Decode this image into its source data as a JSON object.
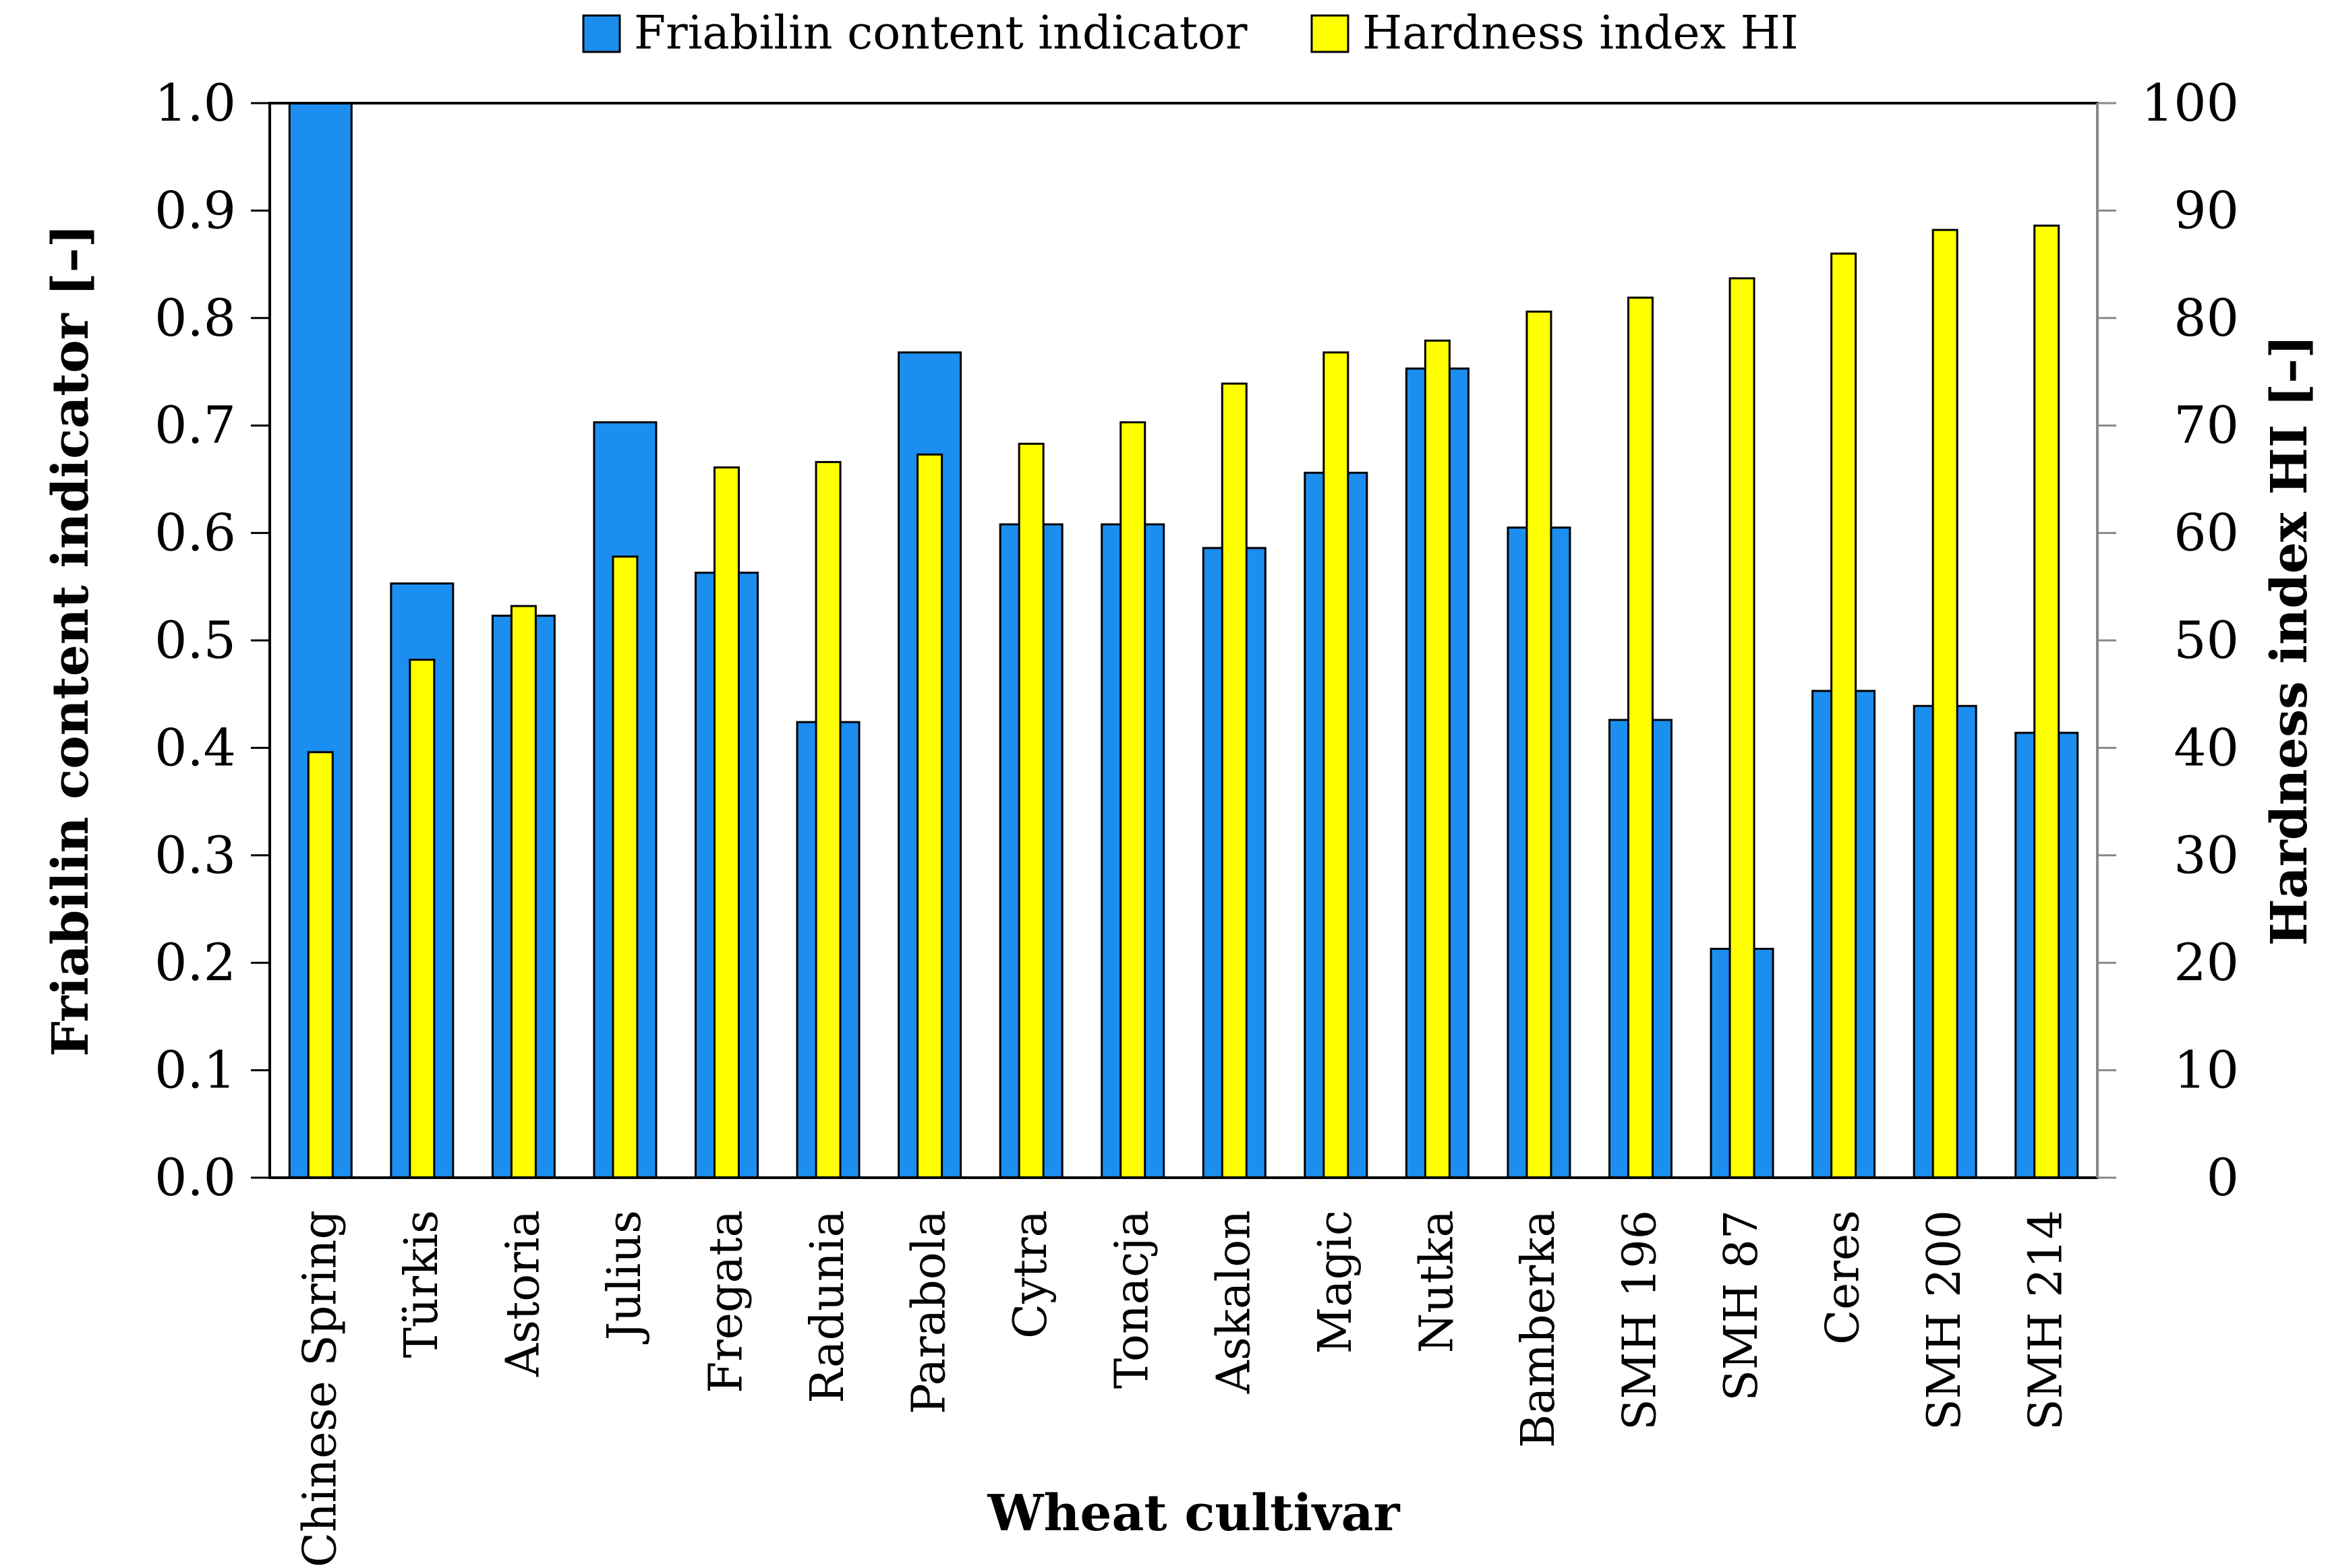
{
  "chart_data": {
    "type": "bar",
    "title": "",
    "xlabel": "Wheat cultivar",
    "ylabel": "Friabilin content indicator  [–]",
    "y2label": "Hardness index HI [–]",
    "ylim": [
      0,
      1.0
    ],
    "y2lim": [
      0,
      100
    ],
    "yticks": [
      "0.0",
      "0.1",
      "0.2",
      "0.3",
      "0.4",
      "0.5",
      "0.6",
      "0.7",
      "0.8",
      "0.9",
      "1.0"
    ],
    "y2ticks": [
      "0",
      "10",
      "20",
      "30",
      "40",
      "50",
      "60",
      "70",
      "80",
      "90",
      "100"
    ],
    "grid": false,
    "legend_position": "top-center",
    "categories": [
      "Chinese Spring",
      "Türkis",
      "Astoria",
      "Julius",
      "Fregata",
      "Radunia",
      "Parabola",
      "Cytra",
      "Tonacja",
      "Askalon",
      "Magic",
      "Nutka",
      "Bamberka",
      "SMH 196",
      "SMH 87",
      "Ceres",
      "SMH 200",
      "SMH 214"
    ],
    "series": [
      {
        "name": "Friabilin content indicator",
        "axis": "left",
        "color": "#1b8ef0",
        "values": [
          1.0,
          0.553,
          0.523,
          0.703,
          0.563,
          0.424,
          0.768,
          0.608,
          0.608,
          0.586,
          0.656,
          0.753,
          0.605,
          0.426,
          0.213,
          0.453,
          0.439,
          0.414
        ]
      },
      {
        "name": "Hardness index HI",
        "axis": "right",
        "color": "#ffff00",
        "values": [
          39.6,
          48.2,
          53.2,
          57.8,
          66.1,
          66.6,
          67.3,
          68.3,
          70.3,
          73.9,
          76.8,
          77.9,
          80.6,
          81.9,
          83.7,
          86.0,
          88.2,
          88.6
        ]
      }
    ]
  }
}
